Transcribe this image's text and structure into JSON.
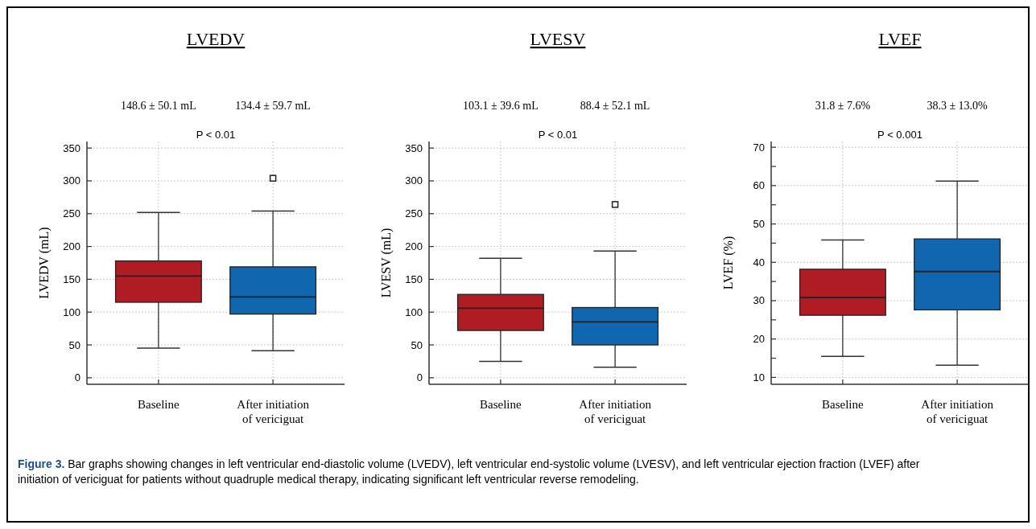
{
  "chart_data": [
    {
      "type": "box",
      "title": "LVEDV",
      "ylabel": "LVEDV (mL)",
      "categories": [
        "Baseline",
        "After initiation of vericiguat"
      ],
      "colors": [
        "#b01c24",
        "#1166b0"
      ],
      "grid": true,
      "marker": "square",
      "boxes": [
        {
          "low": 45,
          "q1": 115,
          "median": 155,
          "q3": 178,
          "high": 252
        },
        {
          "low": 41,
          "q1": 97,
          "median": 123,
          "q3": 169,
          "high": 254,
          "outliers": [
            304
          ]
        }
      ],
      "ylim": [
        -10,
        360
      ],
      "yticks": [
        0,
        50,
        100,
        150,
        200,
        250,
        300,
        350
      ],
      "annotations": [
        "148.6 ± 50.1 mL",
        "134.4 ± 59.7 mL",
        "P < 0.01",
        "Figure 3. Bar graphs showing changes in left ventricular end-diastolic volume (LVEDV), left ventricular end-systolic volume (LVESV), and left ventricular ejection fraction (LVEF) after initiation of vericiguat for patients without quadruple medical therapy, indicating significant left ventricular reverse remodeling."
      ]
    },
    {
      "type": "box",
      "title": "LVESV",
      "ylabel": "LVESV (mL)",
      "categories": [
        "Baseline",
        "After initiation of vericiguat"
      ],
      "colors": [
        "#b01c24",
        "#1166b0"
      ],
      "grid": true,
      "marker": "square",
      "boxes": [
        {
          "low": 25,
          "q1": 72,
          "median": 106,
          "q3": 127,
          "high": 182
        },
        {
          "low": 16,
          "q1": 50,
          "median": 85,
          "q3": 107,
          "high": 193,
          "outliers": [
            264
          ]
        }
      ],
      "ylim": [
        -10,
        360
      ],
      "yticks": [
        0,
        50,
        100,
        150,
        200,
        250,
        300,
        350
      ],
      "annotations": [
        "103.1 ± 39.6 mL",
        "88.4 ± 52.1 mL",
        "P < 0.01"
      ]
    },
    {
      "type": "box",
      "title": "LVEF",
      "ylabel": "LVEF (%)",
      "categories": [
        "Baseline",
        "After initiation of vericiguat"
      ],
      "colors": [
        "#b01c24",
        "#1166b0"
      ],
      "grid": true,
      "boxes": [
        {
          "low": 15.5,
          "q1": 26.2,
          "median": 30.8,
          "q3": 38.2,
          "high": 45.8
        },
        {
          "low": 13.2,
          "q1": 27.6,
          "median": 37.6,
          "q3": 46.1,
          "high": 61.2
        }
      ],
      "ylim": [
        8.2,
        71.5
      ],
      "yticks": [
        10,
        {
          "value": 15,
          "label": null
        },
        20,
        {
          "value": 25,
          "label": null
        },
        30,
        {
          "value": 35,
          "label": null
        },
        40,
        {
          "value": 45,
          "label": null
        },
        50,
        {
          "value": 55,
          "label": null
        },
        60,
        {
          "value": 65,
          "label": null
        },
        70
      ],
      "annotations": [
        "31.8 ± 7.6%",
        "38.3 ± 13.0%",
        "P < 0.001"
      ]
    }
  ]
}
